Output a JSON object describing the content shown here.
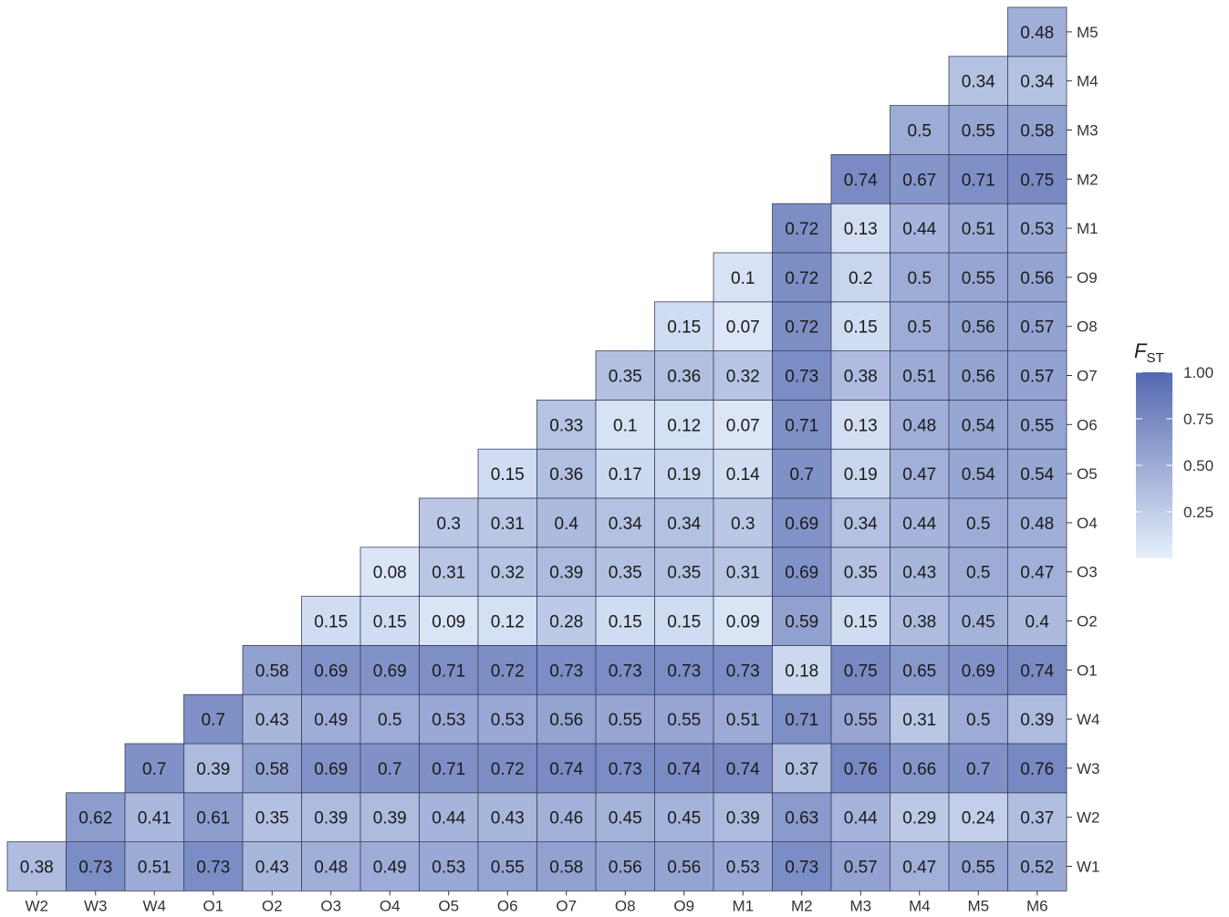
{
  "chart_data": {
    "type": "heatmap",
    "x_categories": [
      "W2",
      "W3",
      "W4",
      "O1",
      "O2",
      "O3",
      "O4",
      "O5",
      "O6",
      "O7",
      "O8",
      "O9",
      "M1",
      "M2",
      "M3",
      "M4",
      "M5",
      "M6"
    ],
    "y_categories": [
      "W1",
      "W2",
      "W3",
      "W4",
      "O1",
      "O2",
      "O3",
      "O4",
      "O5",
      "O6",
      "O7",
      "O8",
      "O9",
      "M1",
      "M2",
      "M3",
      "M4",
      "M5"
    ],
    "rows": [
      {
        "row": "W1",
        "values": [
          0.38,
          0.73,
          0.51,
          0.73,
          0.43,
          0.48,
          0.49,
          0.53,
          0.55,
          0.58,
          0.56,
          0.56,
          0.53,
          0.73,
          0.57,
          0.47,
          0.55,
          0.52
        ]
      },
      {
        "row": "W2",
        "values": [
          0.62,
          0.41,
          0.61,
          0.35,
          0.39,
          0.39,
          0.44,
          0.43,
          0.46,
          0.45,
          0.45,
          0.39,
          0.63,
          0.44,
          0.29,
          0.24,
          0.37
        ]
      },
      {
        "row": "W3",
        "values": [
          0.7,
          0.39,
          0.58,
          0.69,
          0.7,
          0.71,
          0.72,
          0.74,
          0.73,
          0.74,
          0.74,
          0.37,
          0.76,
          0.66,
          0.7,
          0.76
        ]
      },
      {
        "row": "W4",
        "values": [
          0.7,
          0.43,
          0.49,
          0.5,
          0.53,
          0.53,
          0.56,
          0.55,
          0.55,
          0.51,
          0.71,
          0.55,
          0.31,
          0.5,
          0.39
        ]
      },
      {
        "row": "O1",
        "values": [
          0.58,
          0.69,
          0.69,
          0.71,
          0.72,
          0.73,
          0.73,
          0.73,
          0.73,
          0.18,
          0.75,
          0.65,
          0.69,
          0.74
        ]
      },
      {
        "row": "O2",
        "values": [
          0.15,
          0.15,
          0.09,
          0.12,
          0.28,
          0.15,
          0.15,
          0.09,
          0.59,
          0.15,
          0.38,
          0.45,
          0.4
        ]
      },
      {
        "row": "O3",
        "values": [
          0.08,
          0.31,
          0.32,
          0.39,
          0.35,
          0.35,
          0.31,
          0.69,
          0.35,
          0.43,
          0.5,
          0.47
        ]
      },
      {
        "row": "O4",
        "values": [
          0.3,
          0.31,
          0.4,
          0.34,
          0.34,
          0.3,
          0.69,
          0.34,
          0.44,
          0.5,
          0.48
        ]
      },
      {
        "row": "O5",
        "values": [
          0.15,
          0.36,
          0.17,
          0.19,
          0.14,
          0.7,
          0.19,
          0.47,
          0.54,
          0.54
        ]
      },
      {
        "row": "O6",
        "values": [
          0.33,
          0.1,
          0.12,
          0.07,
          0.71,
          0.13,
          0.48,
          0.54,
          0.55
        ]
      },
      {
        "row": "O7",
        "values": [
          0.35,
          0.36,
          0.32,
          0.73,
          0.38,
          0.51,
          0.56,
          0.57
        ]
      },
      {
        "row": "O8",
        "values": [
          0.15,
          0.07,
          0.72,
          0.15,
          0.5,
          0.56,
          0.57
        ]
      },
      {
        "row": "O9",
        "values": [
          0.1,
          0.72,
          0.2,
          0.5,
          0.55,
          0.56
        ]
      },
      {
        "row": "M1",
        "values": [
          0.72,
          0.13,
          0.44,
          0.51,
          0.53
        ]
      },
      {
        "row": "M2",
        "values": [
          0.74,
          0.67,
          0.71,
          0.75
        ]
      },
      {
        "row": "M3",
        "values": [
          0.5,
          0.55,
          0.58
        ]
      },
      {
        "row": "M4",
        "values": [
          0.34,
          0.34
        ]
      },
      {
        "row": "M5",
        "values": [
          0.48
        ]
      }
    ],
    "legend": {
      "title_main": "F",
      "title_sub": "ST",
      "ticks": [
        1.0,
        0.75,
        0.5,
        0.25
      ],
      "tick_labels": [
        "1.00",
        "0.75",
        "0.50",
        "0.25"
      ],
      "range": [
        0,
        1
      ],
      "placement": "right"
    },
    "color_low": "#e6f0fc",
    "color_high": "#5468b0",
    "grid_color": "#3a3f5c"
  }
}
